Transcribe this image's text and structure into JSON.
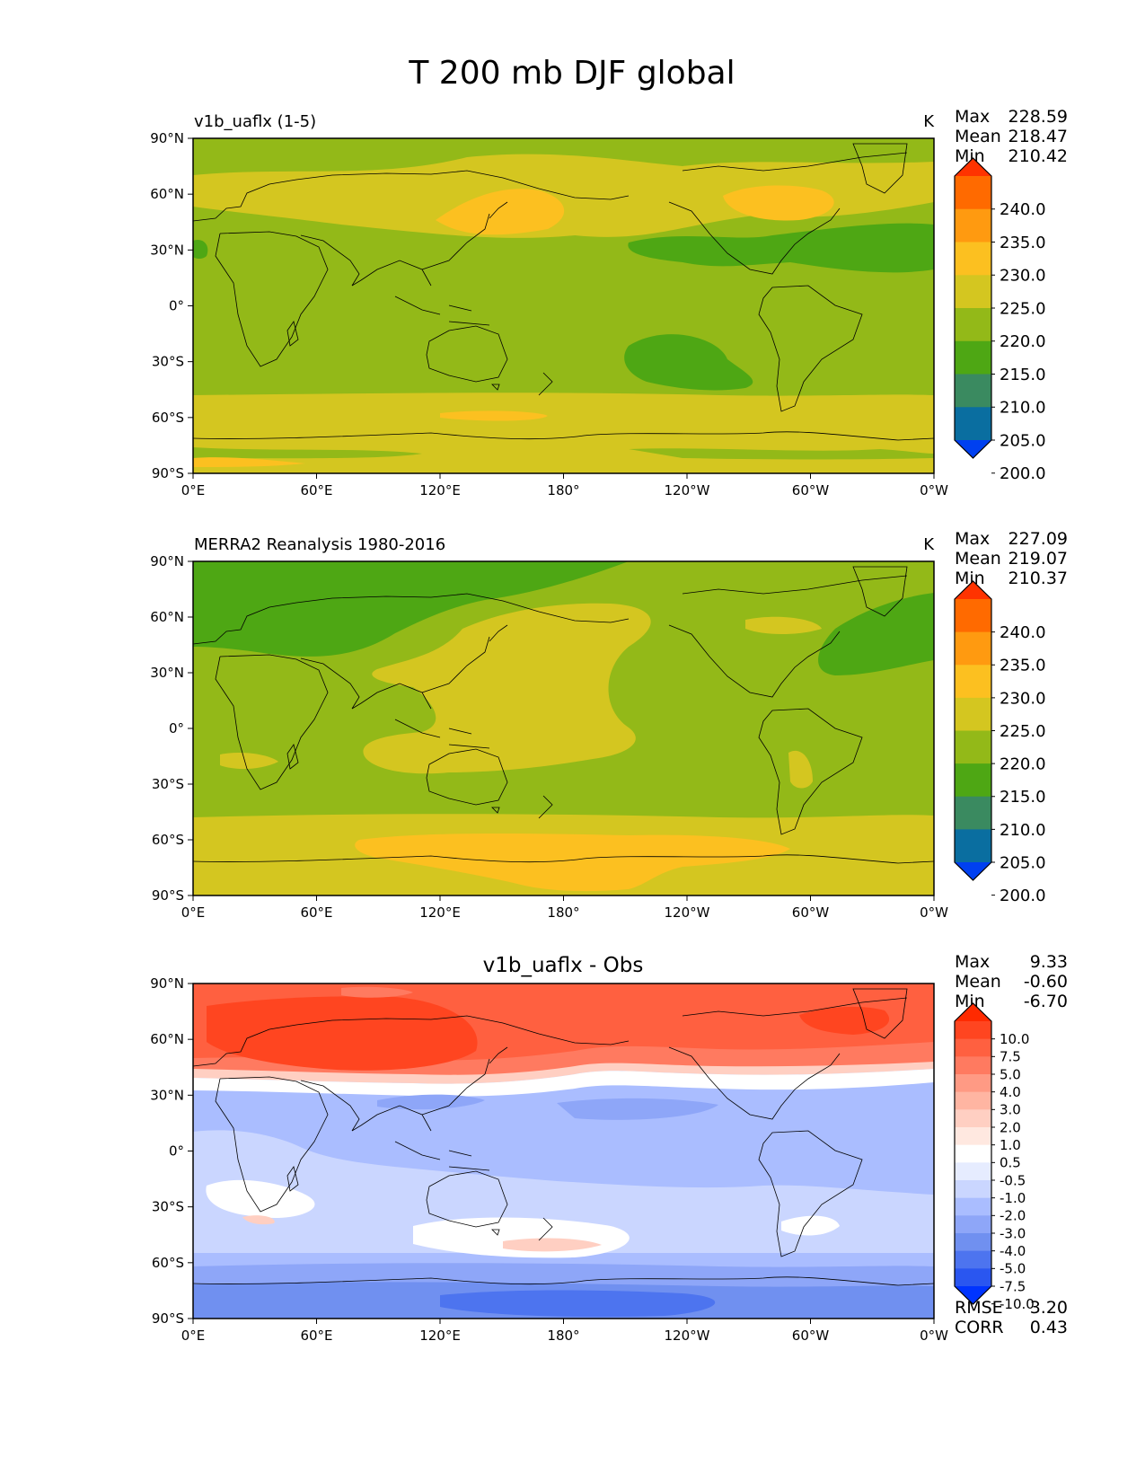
{
  "figure": {
    "title": "T 200 mb DJF global"
  },
  "axes": {
    "lat_ticks": [
      "90°N",
      "60°N",
      "30°N",
      "0°",
      "30°S",
      "60°S",
      "90°S"
    ],
    "lon_ticks": [
      "0°E",
      "60°E",
      "120°E",
      "180°",
      "120°W",
      "60°W",
      "0°W"
    ]
  },
  "panels": [
    {
      "id": "model",
      "title_left": "v1b_uaflx (1-5)",
      "title_center": "",
      "units": "K",
      "stats": [
        {
          "label": "Max",
          "value": "228.59"
        },
        {
          "label": "Mean",
          "value": "218.47"
        },
        {
          "label": "Min",
          "value": "210.42"
        }
      ],
      "colorbar": [
        "240.0",
        "235.0",
        "230.0",
        "225.0",
        "220.0",
        "215.0",
        "210.0",
        "205.0",
        "200.0"
      ],
      "extra": []
    },
    {
      "id": "obs",
      "title_left": "MERRA2 Reanalysis 1980-2016",
      "title_center": "",
      "units": "K",
      "stats": [
        {
          "label": "Max",
          "value": "227.09"
        },
        {
          "label": "Mean",
          "value": "219.07"
        },
        {
          "label": "Min",
          "value": "210.37"
        }
      ],
      "colorbar": [
        "240.0",
        "235.0",
        "230.0",
        "225.0",
        "220.0",
        "215.0",
        "210.0",
        "205.0",
        "200.0"
      ],
      "extra": []
    },
    {
      "id": "diff",
      "title_left": "",
      "title_center": "v1b_uaflx - Obs",
      "units": "",
      "stats": [
        {
          "label": "Max",
          "value": "9.33"
        },
        {
          "label": "Mean",
          "value": "-0.60"
        },
        {
          "label": "Min",
          "value": "-6.70"
        }
      ],
      "colorbar": [
        "10.0",
        "7.5",
        "5.0",
        "4.0",
        "3.0",
        "2.0",
        "1.0",
        "0.5",
        "-0.5",
        "-1.0",
        "-2.0",
        "-3.0",
        "-4.0",
        "-5.0",
        "-7.5",
        "-10.0"
      ],
      "extra": [
        {
          "label": "RMSE",
          "value": "3.20"
        },
        {
          "label": "CORR",
          "value": "0.43"
        }
      ]
    }
  ],
  "colors": {
    "temp_scale": [
      "#ff3300",
      "#ff6a00",
      "#ff9a10",
      "#fcc020",
      "#d4c620",
      "#93b918",
      "#4ea714",
      "#3a8a60",
      "#0a6ea0",
      "#0040f0"
    ],
    "diff_scale": [
      "#ff2a00",
      "#ff4520",
      "#ff6040",
      "#ff7a60",
      "#ff9a84",
      "#ffb5a2",
      "#ffcfc2",
      "#ffe8e0",
      "#ffffff",
      "#e6ecff",
      "#cad6ff",
      "#aabdff",
      "#8ea6f8",
      "#7090f0",
      "#4d74ef",
      "#2a56f0",
      "#0034ff"
    ]
  }
}
